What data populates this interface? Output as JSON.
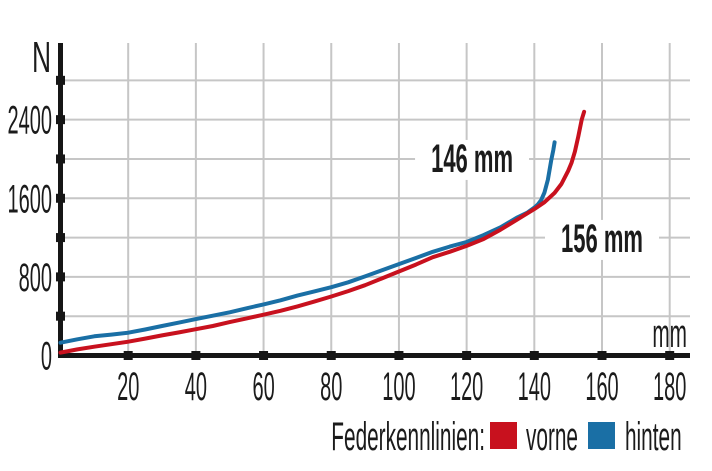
{
  "chart_data": {
    "type": "line",
    "title": "",
    "xlabel": "mm",
    "ylabel": "N",
    "xlim": [
      0,
      186
    ],
    "ylim": [
      0,
      3180
    ],
    "x_ticks": [
      20,
      40,
      60,
      80,
      100,
      120,
      140,
      160,
      180
    ],
    "y_ticks": [
      400,
      800,
      1200,
      1600,
      2000,
      2400,
      2800
    ],
    "y_labeled_ticks": [
      0,
      800,
      1600,
      2400
    ],
    "grid": true,
    "series": [
      {
        "name": "vorne",
        "color": "#c8111e",
        "points": [
          [
            0,
            30
          ],
          [
            5,
            62
          ],
          [
            10,
            90
          ],
          [
            15,
            115
          ],
          [
            20,
            140
          ],
          [
            25,
            172
          ],
          [
            30,
            205
          ],
          [
            35,
            235
          ],
          [
            40,
            268
          ],
          [
            45,
            300
          ],
          [
            50,
            340
          ],
          [
            55,
            378
          ],
          [
            60,
            415
          ],
          [
            65,
            455
          ],
          [
            70,
            500
          ],
          [
            75,
            548
          ],
          [
            80,
            600
          ],
          [
            85,
            655
          ],
          [
            90,
            715
          ],
          [
            95,
            785
          ],
          [
            100,
            855
          ],
          [
            105,
            925
          ],
          [
            110,
            1000
          ],
          [
            115,
            1055
          ],
          [
            120,
            1115
          ],
          [
            125,
            1185
          ],
          [
            130,
            1280
          ],
          [
            135,
            1385
          ],
          [
            140,
            1490
          ],
          [
            143,
            1560
          ],
          [
            146,
            1655
          ],
          [
            148,
            1745
          ],
          [
            150,
            1880
          ],
          [
            151,
            1960
          ],
          [
            152,
            2075
          ],
          [
            153,
            2230
          ],
          [
            154,
            2400
          ],
          [
            154.7,
            2480
          ]
        ]
      },
      {
        "name": "hinten",
        "color": "#1a6fa5",
        "points": [
          [
            0,
            130
          ],
          [
            5,
            165
          ],
          [
            10,
            195
          ],
          [
            15,
            213
          ],
          [
            20,
            232
          ],
          [
            25,
            265
          ],
          [
            30,
            300
          ],
          [
            35,
            335
          ],
          [
            40,
            370
          ],
          [
            45,
            405
          ],
          [
            50,
            440
          ],
          [
            55,
            480
          ],
          [
            60,
            520
          ],
          [
            65,
            562
          ],
          [
            70,
            610
          ],
          [
            75,
            652
          ],
          [
            80,
            695
          ],
          [
            85,
            745
          ],
          [
            90,
            805
          ],
          [
            95,
            868
          ],
          [
            100,
            930
          ],
          [
            105,
            992
          ],
          [
            110,
            1055
          ],
          [
            115,
            1108
          ],
          [
            120,
            1155
          ],
          [
            125,
            1225
          ],
          [
            130,
            1305
          ],
          [
            135,
            1405
          ],
          [
            138,
            1455
          ],
          [
            140,
            1505
          ],
          [
            141,
            1535
          ],
          [
            142,
            1580
          ],
          [
            143,
            1660
          ],
          [
            144,
            1790
          ],
          [
            145,
            1985
          ],
          [
            145.6,
            2090
          ],
          [
            146,
            2170
          ]
        ]
      }
    ],
    "annotations": [
      {
        "text": "146 mm",
        "mm": 121.6,
        "n": 1990
      },
      {
        "text": "156 mm",
        "mm": 160.0,
        "n": 1176
      }
    ],
    "legend": {
      "title": "Federkennlinien:",
      "position": "bottom-right",
      "entries": [
        {
          "label": "vorne",
          "color": "#c8111e"
        },
        {
          "label": "hinten",
          "color": "#1a6fa5"
        }
      ]
    }
  },
  "colors": {
    "background": "#ffffff",
    "grid": "#c6c6c6",
    "axis": "#161616",
    "text": "#1b1b1b",
    "vorne": "#c8111e",
    "hinten": "#1a6fa5"
  }
}
